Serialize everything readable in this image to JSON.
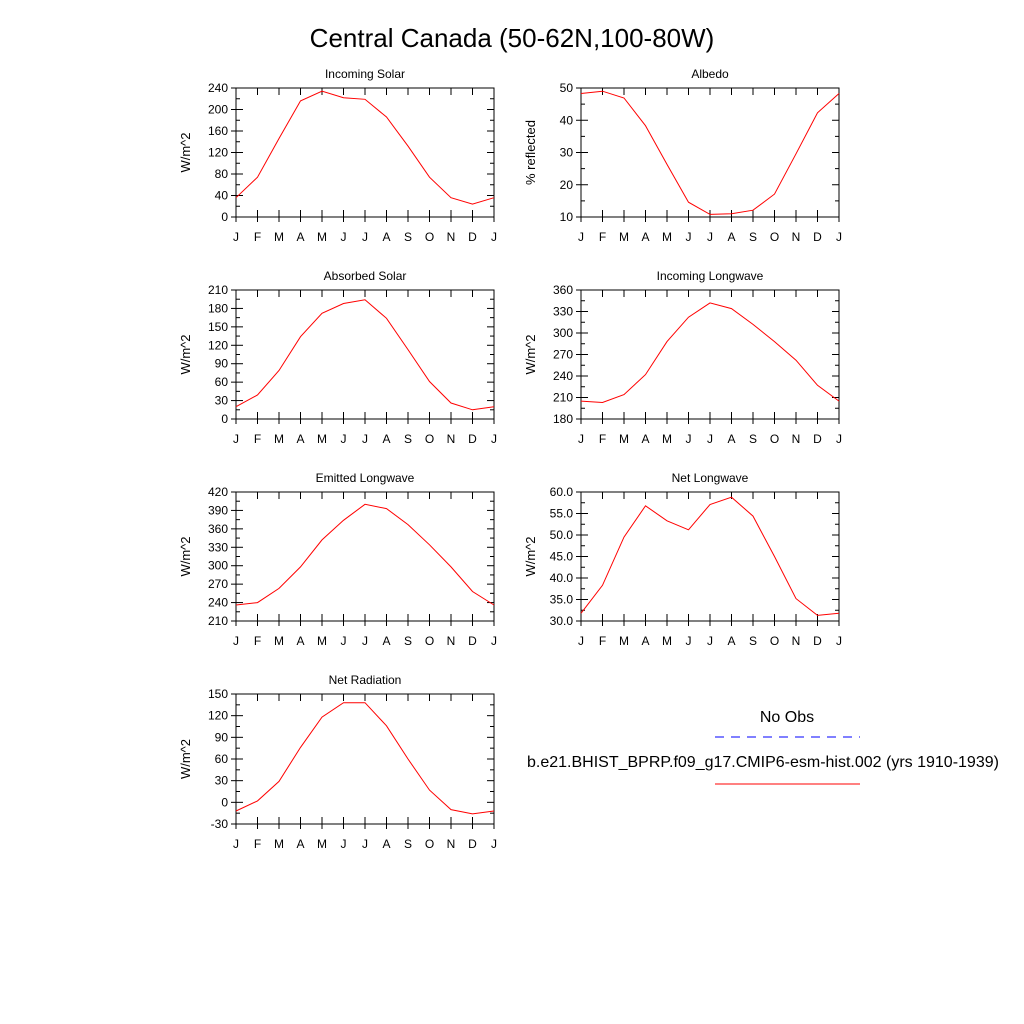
{
  "title": "Central Canada (50-62N,100-80W)",
  "months": [
    "J",
    "F",
    "M",
    "A",
    "M",
    "J",
    "J",
    "A",
    "S",
    "O",
    "N",
    "D",
    "J"
  ],
  "legend": {
    "obs_label": "No Obs",
    "model_label": "b.e21.BHIST_BPRP.f09_g17.CMIP6-esm-hist.002 (yrs 1910-1939)",
    "obs_color": "#0000ff",
    "model_color": "#ff0000"
  },
  "chart_data": [
    {
      "type": "line",
      "title": "Incoming Solar",
      "ylabel": "W/m^2",
      "ylim": [
        0,
        240
      ],
      "yticks": [
        0,
        40,
        80,
        120,
        160,
        200,
        240
      ],
      "yticklabels": [
        "0",
        "40",
        "80",
        "120",
        "160",
        "200",
        "240"
      ],
      "values": [
        36,
        74,
        146,
        216,
        234,
        222,
        219,
        186,
        132,
        74,
        36,
        24,
        36
      ],
      "color": "#ff0000"
    },
    {
      "type": "line",
      "title": "Albedo",
      "ylabel": "% reflected",
      "ylim": [
        10,
        50
      ],
      "yticks": [
        10,
        20,
        30,
        40,
        50
      ],
      "yticklabels": [
        "10",
        "20",
        "30",
        "40",
        "50"
      ],
      "values": [
        48.3,
        49.0,
        46.9,
        38.3,
        26.3,
        14.6,
        10.8,
        11.0,
        12.1,
        17.1,
        29.6,
        42.3,
        48.3
      ],
      "color": "#ff0000"
    },
    {
      "type": "line",
      "title": "Absorbed Solar",
      "ylabel": "W/m^2",
      "ylim": [
        0,
        210
      ],
      "yticks": [
        0,
        30,
        60,
        90,
        120,
        150,
        180,
        210
      ],
      "yticklabels": [
        "0",
        "30",
        "60",
        "90",
        "120",
        "150",
        "180",
        "210"
      ],
      "values": [
        20,
        39,
        79,
        134,
        172,
        188,
        194,
        164,
        113,
        61,
        26,
        15,
        20
      ],
      "color": "#ff0000"
    },
    {
      "type": "line",
      "title": "Incoming Longwave",
      "ylabel": "W/m^2",
      "ylim": [
        180,
        360
      ],
      "yticks": [
        180,
        210,
        240,
        270,
        300,
        330,
        360
      ],
      "yticklabels": [
        "180",
        "210",
        "240",
        "270",
        "300",
        "330",
        "360"
      ],
      "values": [
        205,
        203,
        214,
        242,
        288,
        322,
        342,
        334,
        312,
        288,
        262,
        227,
        205
      ],
      "color": "#ff0000"
    },
    {
      "type": "line",
      "title": "Emitted Longwave",
      "ylabel": "W/m^2",
      "ylim": [
        210,
        420
      ],
      "yticks": [
        210,
        240,
        270,
        300,
        330,
        360,
        390,
        420
      ],
      "yticklabels": [
        "210",
        "240",
        "270",
        "300",
        "330",
        "360",
        "390",
        "420"
      ],
      "values": [
        236,
        240,
        263,
        298,
        342,
        374,
        400,
        393,
        367,
        334,
        298,
        258,
        236
      ],
      "color": "#ff0000"
    },
    {
      "type": "line",
      "title": "Net Longwave",
      "ylabel": "W/m^2",
      "ylim": [
        30,
        60
      ],
      "yticks": [
        30,
        35,
        40,
        45,
        50,
        55,
        60
      ],
      "yticklabels": [
        "30.0",
        "35.0",
        "40.0",
        "45.0",
        "50.0",
        "55.0",
        "60.0"
      ],
      "values": [
        31.8,
        38.3,
        49.5,
        56.8,
        53.3,
        51.2,
        57.1,
        58.8,
        54.4,
        45.0,
        35.2,
        31.3,
        31.8
      ],
      "color": "#ff0000"
    },
    {
      "type": "line",
      "title": "Net Radiation",
      "ylabel": "W/m^2",
      "ylim": [
        -30,
        150
      ],
      "yticks": [
        -30,
        0,
        30,
        60,
        90,
        120,
        150
      ],
      "yticklabels": [
        "-30",
        "0",
        "30",
        "60",
        "90",
        "120",
        "150"
      ],
      "values": [
        -12,
        2,
        29,
        76,
        118,
        138,
        138,
        106,
        60,
        17,
        -10,
        -16,
        -12
      ],
      "color": "#ff0000"
    }
  ]
}
